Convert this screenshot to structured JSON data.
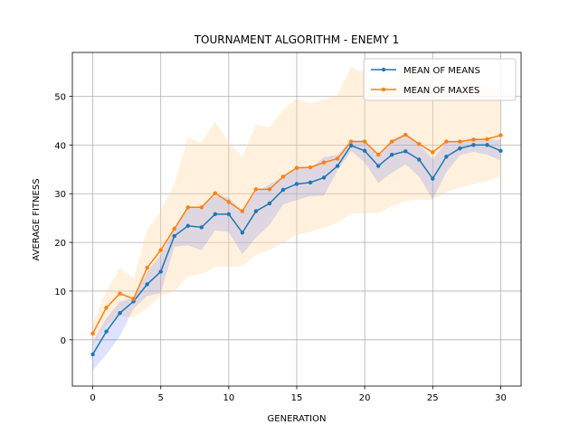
{
  "chart_data": {
    "type": "line",
    "title": "TOURNAMENT ALGORITHM - ENEMY 1",
    "xlabel": "GENERATION",
    "ylabel": "AVERAGE FITNESS",
    "xlim": [
      -1.5,
      31.5
    ],
    "ylim": [
      -9.5,
      59
    ],
    "xticks": [
      0,
      5,
      10,
      15,
      20,
      25,
      30
    ],
    "yticks": [
      0,
      10,
      20,
      30,
      40,
      50
    ],
    "grid": true,
    "legend_position": "top-right",
    "x": [
      0,
      1,
      2,
      3,
      4,
      5,
      6,
      7,
      8,
      9,
      10,
      11,
      12,
      13,
      14,
      15,
      16,
      17,
      18,
      19,
      20,
      21,
      22,
      23,
      24,
      25,
      26,
      27,
      28,
      29,
      30
    ],
    "series": [
      {
        "name": "MEAN OF MEANS",
        "color": "#1f77b4",
        "values": [
          -3.0,
          1.7,
          5.5,
          7.9,
          11.4,
          14.0,
          21.3,
          23.4,
          23.1,
          25.8,
          25.8,
          22.0,
          26.4,
          28.0,
          30.8,
          32.0,
          32.3,
          33.3,
          35.7,
          39.9,
          38.8,
          35.7,
          38.0,
          38.7,
          37.0,
          33.1,
          37.6,
          39.3,
          40.0,
          40.0,
          38.8
        ],
        "band_lower": [
          -6.3,
          -3.0,
          0.8,
          6.4,
          9.0,
          9.6,
          19.1,
          19.4,
          18.4,
          22.5,
          22.1,
          17.6,
          21.0,
          23.6,
          27.8,
          28.7,
          29.5,
          29.6,
          34.8,
          38.8,
          36.4,
          32.2,
          34.3,
          36.0,
          33.5,
          28.8,
          34.4,
          37.9,
          38.6,
          38.0,
          36.8
        ],
        "band_upper": [
          -0.5,
          4.5,
          7.8,
          8.7,
          14.0,
          17.4,
          22.7,
          27.0,
          27.3,
          29.6,
          29.2,
          26.3,
          30.3,
          31.9,
          33.5,
          35.3,
          35.2,
          37.5,
          38.0,
          41.0,
          41.0,
          37.6,
          41.2,
          42.3,
          40.2,
          37.1,
          40.6,
          40.8,
          41.5,
          41.0,
          41.1
        ]
      },
      {
        "name": "MEAN OF MAXES",
        "color": "#ff7f0e",
        "values": [
          1.3,
          6.6,
          9.5,
          8.4,
          14.8,
          18.4,
          22.8,
          27.2,
          27.2,
          30.1,
          28.3,
          26.4,
          30.9,
          30.9,
          33.5,
          35.3,
          35.4,
          36.4,
          37.2,
          40.7,
          40.7,
          38.0,
          40.7,
          42.1,
          40.2,
          38.5,
          40.7,
          40.7,
          41.1,
          41.2,
          42.0
        ],
        "band_lower": [
          -1.0,
          3.0,
          5.0,
          4.5,
          6.5,
          9.0,
          10.0,
          13.0,
          13.5,
          15.0,
          15.0,
          15.2,
          17.4,
          18.4,
          20.0,
          21.5,
          22.2,
          23.0,
          24.0,
          25.9,
          26.0,
          26.0,
          27.4,
          28.5,
          28.8,
          28.7,
          30.4,
          31.2,
          32.0,
          32.6,
          33.5
        ],
        "band_upper": [
          3.5,
          10.0,
          14.8,
          12.5,
          22.5,
          26.5,
          32.0,
          41.5,
          40.5,
          44.8,
          40.5,
          37.6,
          44.2,
          43.6,
          47.3,
          49.5,
          48.5,
          49.3,
          50.3,
          56.0,
          54.8,
          50.8,
          53.3,
          55.1,
          53.4,
          51.6,
          53.4,
          52.2,
          52.2,
          51.8,
          51.8
        ]
      }
    ]
  }
}
